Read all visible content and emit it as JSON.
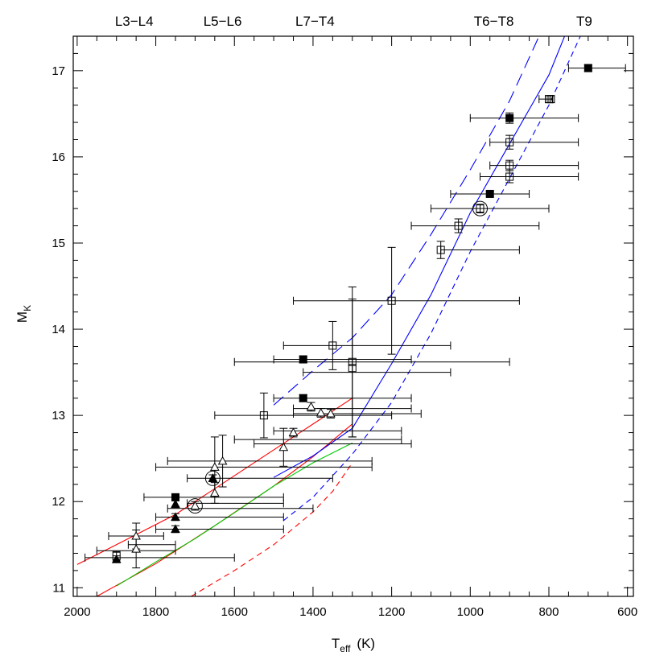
{
  "chart_data": {
    "type": "scatter",
    "title": "",
    "xlabel_main": "T",
    "xlabel_sub": "eff",
    "xlabel_unit": "(K)",
    "ylabel_main": "M",
    "ylabel_sub": "K",
    "xlim": [
      2010,
      585
    ],
    "ylim": [
      17.4,
      10.9
    ],
    "x_ticks": [
      2000,
      1800,
      1600,
      1400,
      1200,
      1000,
      800,
      600
    ],
    "y_ticks": [
      11,
      12,
      13,
      14,
      15,
      16,
      17
    ],
    "x_tick_labels": [
      "2000",
      "1800",
      "1600",
      "1400",
      "1200",
      "1000",
      "800",
      "600"
    ],
    "y_tick_labels": [
      "11",
      "12",
      "13",
      "14",
      "15",
      "16",
      "17"
    ],
    "spectral_types": [
      {
        "label": "L3−L4",
        "x": 1855
      },
      {
        "label": "L5−L6",
        "x": 1630
      },
      {
        "label": "L7−T4",
        "x": 1395
      },
      {
        "label": "T6−T8",
        "x": 940
      },
      {
        "label": "T9",
        "x": 710
      }
    ],
    "series": [
      {
        "marker": "filled-triangle",
        "points": [
          {
            "x": 1900,
            "y": 11.33,
            "xerr": 0,
            "yerr": 0.04
          },
          {
            "x": 1750,
            "y": 11.68,
            "xerr": 0,
            "yerr": 0.04
          },
          {
            "x": 1750,
            "y": 11.82,
            "xerr": 0,
            "yerr": 0.04
          },
          {
            "x": 1750,
            "y": 11.97,
            "xerr": 0,
            "yerr": 0.04
          },
          {
            "x": 1655,
            "y": 12.27,
            "xerr": 0,
            "yerr": 0.04
          }
        ]
      },
      {
        "marker": "open-triangle",
        "points": [
          {
            "x": 1850,
            "y": 11.45,
            "xerr": 100,
            "yerr": 0.22
          },
          {
            "x": 1850,
            "y": 11.6,
            "xerr": 130,
            "yerr": 0.15
          },
          {
            "x": 1700,
            "y": 11.95,
            "xerr": 0,
            "yerr": 0.05
          },
          {
            "x": 1650,
            "y": 12.1,
            "xerr": 0,
            "yerr": 0.12
          },
          {
            "x": 1650,
            "y": 12.4,
            "xerr": 150,
            "yerr": 0.35
          },
          {
            "x": 1630,
            "y": 12.47,
            "xerr": 180,
            "yerr": 0.3
          },
          {
            "x": 1475,
            "y": 12.63,
            "xerr": 75,
            "yerr": 0.22
          },
          {
            "x": 1450,
            "y": 12.8,
            "xerr": 0,
            "yerr": 0.05
          },
          {
            "x": 1405,
            "y": 13.1,
            "xerr": 0,
            "yerr": 0.05
          },
          {
            "x": 1380,
            "y": 13.03,
            "xerr": 0,
            "yerr": 0.05
          },
          {
            "x": 1355,
            "y": 13.02,
            "xerr": 0,
            "yerr": 0.05
          }
        ]
      },
      {
        "marker": "filled-square",
        "points": [
          {
            "x": 1750,
            "y": 12.05,
            "xerr": 0,
            "yerr": 0.04
          },
          {
            "x": 1425,
            "y": 13.2,
            "xerr": 0,
            "yerr": 0.04
          },
          {
            "x": 1425,
            "y": 13.65,
            "xerr": 0,
            "yerr": 0.04
          },
          {
            "x": 950,
            "y": 15.57,
            "xerr": 0,
            "yerr": 0.03
          },
          {
            "x": 900,
            "y": 16.45,
            "xerr": 100,
            "yerr": 0.06
          },
          {
            "x": 700,
            "y": 17.03,
            "xerr": 50,
            "yerr": 0.04
          }
        ]
      },
      {
        "marker": "open-square",
        "points": [
          {
            "x": 1900,
            "y": 11.37,
            "xerr": 0,
            "yerr": 0.05
          },
          {
            "x": 1525,
            "y": 13.0,
            "xerr": 0,
            "yerr": 0.26
          },
          {
            "x": 1300,
            "y": 13.55,
            "xerr": 0,
            "yerr": 0.8
          },
          {
            "x": 1300,
            "y": 13.62,
            "xerr": 200,
            "yerr": 0.87
          },
          {
            "x": 1350,
            "y": 13.81,
            "xerr": 0,
            "yerr": 0.28
          },
          {
            "x": 1200,
            "y": 14.33,
            "xerr": 0,
            "yerr": 0.62
          },
          {
            "x": 1075,
            "y": 14.92,
            "xerr": 0,
            "yerr": 0.1
          },
          {
            "x": 1030,
            "y": 15.2,
            "xerr": 0,
            "yerr": 0.08
          },
          {
            "x": 975,
            "y": 15.4,
            "xerr": 0,
            "yerr": 0.05
          },
          {
            "x": 900,
            "y": 15.77,
            "xerr": 0,
            "yerr": 0.07
          },
          {
            "x": 900,
            "y": 15.9,
            "xerr": 0,
            "yerr": 0.06
          },
          {
            "x": 900,
            "y": 16.17,
            "xerr": 0,
            "yerr": 0.08
          },
          {
            "x": 800,
            "y": 16.67,
            "xerr": 0,
            "yerr": 0.04
          },
          {
            "x": 795,
            "y": 16.67,
            "xerr": 0,
            "yerr": 0.04
          }
        ]
      },
      {
        "marker": "circle",
        "points": [
          {
            "x": 1700,
            "y": 11.95
          },
          {
            "x": 1655,
            "y": 12.27
          },
          {
            "x": 975,
            "y": 15.4
          }
        ]
      }
    ],
    "horizontal_error_bars": [
      {
        "x1": 1980,
        "x2": 1600,
        "y": 11.35
      },
      {
        "x1": 1950,
        "x2": 1750,
        "y": 11.43
      },
      {
        "x1": 1870,
        "x2": 1750,
        "y": 11.5
      },
      {
        "x1": 1920,
        "x2": 1780,
        "y": 11.6
      },
      {
        "x1": 1800,
        "x2": 1475,
        "y": 11.68
      },
      {
        "x1": 1800,
        "x2": 1475,
        "y": 11.82
      },
      {
        "x1": 1770,
        "x2": 1400,
        "y": 11.92
      },
      {
        "x1": 1720,
        "x2": 1475,
        "y": 11.98
      },
      {
        "x1": 1830,
        "x2": 1475,
        "y": 12.05
      },
      {
        "x1": 1800,
        "x2": 1250,
        "y": 12.4
      },
      {
        "x1": 1770,
        "x2": 1250,
        "y": 12.47
      },
      {
        "x1": 1720,
        "x2": 1350,
        "y": 12.27
      },
      {
        "x1": 1550,
        "x2": 1150,
        "y": 12.67
      },
      {
        "x1": 1600,
        "x2": 1175,
        "y": 12.72
      },
      {
        "x1": 1500,
        "x2": 1175,
        "y": 12.82
      },
      {
        "x1": 1650,
        "x2": 1200,
        "y": 13.0
      },
      {
        "x1": 1450,
        "x2": 1125,
        "y": 13.02
      },
      {
        "x1": 1450,
        "x2": 1150,
        "y": 13.08
      },
      {
        "x1": 1500,
        "x2": 1150,
        "y": 13.2
      },
      {
        "x1": 1425,
        "x2": 1050,
        "y": 13.5
      },
      {
        "x1": 1600,
        "x2": 900,
        "y": 13.62
      },
      {
        "x1": 1500,
        "x2": 1150,
        "y": 13.65
      },
      {
        "x1": 1475,
        "x2": 1050,
        "y": 13.81
      },
      {
        "x1": 1450,
        "x2": 875,
        "y": 14.33
      },
      {
        "x1": 1075,
        "x2": 875,
        "y": 14.92
      },
      {
        "x1": 1150,
        "x2": 825,
        "y": 15.2
      },
      {
        "x1": 1100,
        "x2": 800,
        "y": 15.4
      },
      {
        "x1": 1050,
        "x2": 850,
        "y": 15.57
      },
      {
        "x1": 975,
        "x2": 725,
        "y": 15.77
      },
      {
        "x1": 950,
        "x2": 725,
        "y": 15.9
      },
      {
        "x1": 950,
        "x2": 725,
        "y": 16.17
      },
      {
        "x1": 1000,
        "x2": 725,
        "y": 16.45
      },
      {
        "x1": 825,
        "x2": 790,
        "y": 16.67
      },
      {
        "x1": 750,
        "x2": 605,
        "y": 17.03
      }
    ],
    "curves": [
      {
        "color": "#ff0000",
        "style": "solid",
        "points": [
          [
            1950,
            10.9
          ],
          [
            1800,
            11.28
          ],
          [
            1650,
            11.72
          ],
          [
            1500,
            12.18
          ],
          [
            1400,
            12.52
          ],
          [
            1300,
            12.9
          ]
        ]
      },
      {
        "color": "#ff0000",
        "style": "solid",
        "points": [
          [
            2000,
            11.27
          ],
          [
            1900,
            11.5
          ],
          [
            1750,
            11.85
          ],
          [
            1600,
            12.3
          ],
          [
            1450,
            12.75
          ],
          [
            1300,
            13.2
          ]
        ]
      },
      {
        "color": "#ff0000",
        "style": "dashed",
        "points": [
          [
            1710,
            10.9
          ],
          [
            1600,
            11.2
          ],
          [
            1500,
            11.5
          ],
          [
            1400,
            11.88
          ],
          [
            1350,
            12.12
          ],
          [
            1300,
            12.45
          ]
        ]
      },
      {
        "color": "#00cc00",
        "style": "solid",
        "points": [
          [
            1900,
            11.02
          ],
          [
            1800,
            11.3
          ],
          [
            1700,
            11.57
          ],
          [
            1600,
            11.87
          ],
          [
            1500,
            12.18
          ],
          [
            1400,
            12.45
          ],
          [
            1300,
            12.68
          ]
        ]
      },
      {
        "color": "#0000ff",
        "style": "solid",
        "points": [
          [
            1500,
            12.28
          ],
          [
            1400,
            12.53
          ],
          [
            1300,
            12.85
          ],
          [
            1200,
            13.6
          ],
          [
            1100,
            14.4
          ],
          [
            1000,
            15.35
          ],
          [
            900,
            16.15
          ],
          [
            800,
            16.95
          ],
          [
            760,
            17.4
          ]
        ]
      },
      {
        "color": "#0000ff",
        "style": "dashed",
        "points": [
          [
            1475,
            11.78
          ],
          [
            1400,
            12.05
          ],
          [
            1300,
            12.55
          ],
          [
            1200,
            13.15
          ],
          [
            1100,
            13.95
          ],
          [
            1000,
            14.9
          ],
          [
            900,
            15.75
          ],
          [
            800,
            16.6
          ],
          [
            720,
            17.4
          ]
        ]
      },
      {
        "color": "#0000ff",
        "style": "longdash",
        "points": [
          [
            1500,
            13.12
          ],
          [
            1400,
            13.52
          ],
          [
            1300,
            13.9
          ],
          [
            1200,
            14.4
          ],
          [
            1100,
            15.1
          ],
          [
            1000,
            15.85
          ],
          [
            900,
            16.65
          ],
          [
            825,
            17.4
          ]
        ]
      }
    ]
  }
}
